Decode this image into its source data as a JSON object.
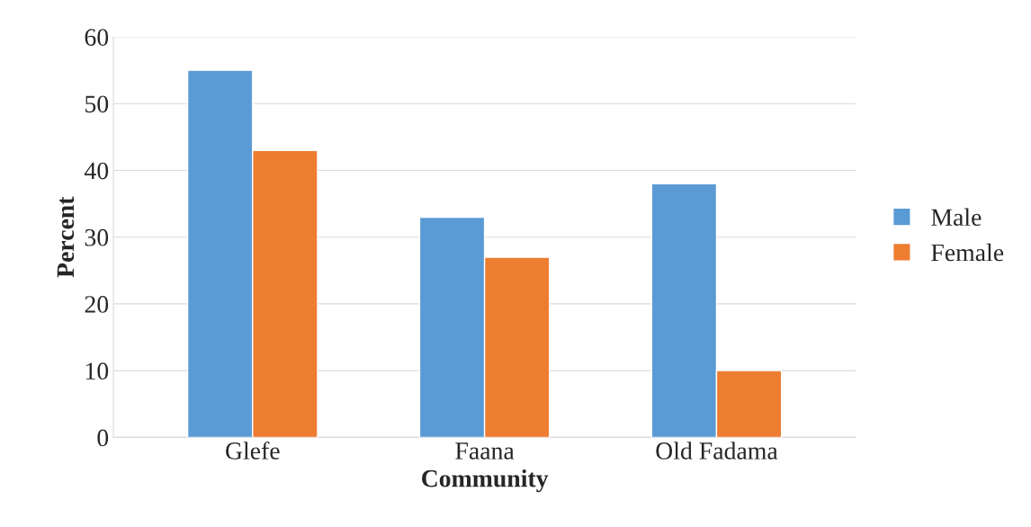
{
  "chart_data": {
    "type": "bar",
    "xlabel": "Community",
    "ylabel": "Percent",
    "categories": [
      "Glefe",
      "Faana",
      "Old Fadama"
    ],
    "series": [
      {
        "name": "Male",
        "color": "#5b9bd5",
        "values": [
          55,
          33,
          38
        ]
      },
      {
        "name": "Female",
        "color": "#ed7d31",
        "values": [
          43,
          27,
          10
        ]
      }
    ],
    "ylim": [
      0,
      60
    ],
    "yticks": [
      0,
      10,
      20,
      30,
      40,
      50,
      60
    ],
    "grid": "y",
    "legend": "right"
  }
}
